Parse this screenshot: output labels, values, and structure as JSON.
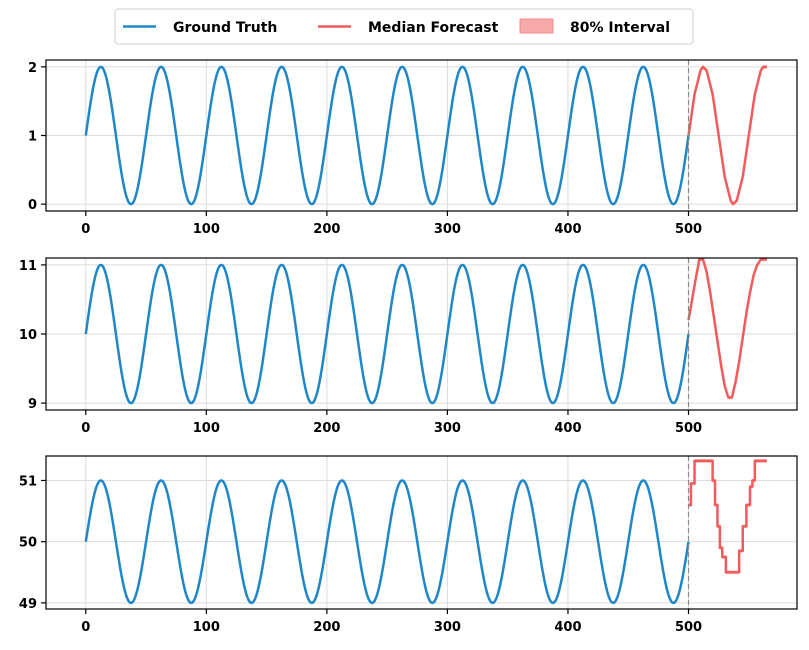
{
  "legend": {
    "placement": "top-center",
    "items": [
      {
        "label": "Ground Truth",
        "type": "line",
        "color": "#1f87c7"
      },
      {
        "label": "Median Forecast",
        "type": "line",
        "color": "#f25b5b"
      },
      {
        "label": "80% Interval",
        "type": "patch",
        "color": "#f7a8a8"
      }
    ]
  },
  "chart_data": [
    {
      "type": "line",
      "xlim": [
        -33,
        590
      ],
      "ylim": [
        -0.1,
        2.1
      ],
      "x_ticks": [
        0,
        100,
        200,
        300,
        400,
        500
      ],
      "y_ticks": [
        0,
        1,
        2
      ],
      "grid": true,
      "forecast_start": 500,
      "ground_truth": {
        "name": "Ground Truth",
        "x_start": 0,
        "x_end": 500,
        "period": 50,
        "baseline": 1,
        "amplitude": 1
      },
      "median_forecast": {
        "name": "Median Forecast",
        "x": [
          500,
          505,
          510,
          512,
          515,
          520,
          525,
          530,
          535,
          537,
          540,
          545,
          550,
          555,
          560,
          562,
          565
        ],
        "y": [
          1.0,
          1.6,
          1.95,
          2.0,
          1.95,
          1.6,
          1.0,
          0.4,
          0.05,
          0.0,
          0.05,
          0.4,
          1.0,
          1.6,
          1.95,
          2.0,
          2.0
        ]
      }
    },
    {
      "type": "line",
      "xlim": [
        -33,
        590
      ],
      "ylim": [
        8.9,
        11.1
      ],
      "x_ticks": [
        0,
        100,
        200,
        300,
        400,
        500
      ],
      "y_ticks": [
        9,
        10,
        11
      ],
      "grid": true,
      "forecast_start": 500,
      "ground_truth": {
        "name": "Ground Truth",
        "x_start": 0,
        "x_end": 500,
        "period": 50,
        "baseline": 10,
        "amplitude": 1
      },
      "median_forecast": {
        "name": "Median Forecast",
        "x": [
          500,
          503,
          506,
          509,
          512,
          515,
          518,
          521,
          524,
          527,
          530,
          533,
          536,
          539,
          542,
          545,
          548,
          551,
          554,
          557,
          560,
          563,
          565
        ],
        "y": [
          10.2,
          10.5,
          10.8,
          11.08,
          11.08,
          10.9,
          10.6,
          10.25,
          9.9,
          9.55,
          9.25,
          9.08,
          9.08,
          9.3,
          9.6,
          9.95,
          10.3,
          10.6,
          10.85,
          11.0,
          11.08,
          11.08,
          11.08
        ]
      }
    },
    {
      "type": "line",
      "xlim": [
        -33,
        590
      ],
      "ylim": [
        48.9,
        51.4
      ],
      "x_ticks": [
        0,
        100,
        200,
        300,
        400,
        500
      ],
      "y_ticks": [
        49,
        50,
        51
      ],
      "grid": true,
      "forecast_start": 500,
      "ground_truth": {
        "name": "Ground Truth",
        "x_start": 0,
        "x_end": 500,
        "period": 50,
        "baseline": 50,
        "amplitude": 1
      },
      "median_forecast": {
        "name": "Median Forecast",
        "step": true,
        "x": [
          500,
          502,
          505,
          508,
          512,
          515,
          520,
          522,
          524,
          526,
          528,
          531,
          534,
          538,
          542,
          545,
          548,
          551,
          553,
          555,
          558,
          565
        ],
        "y": [
          50.6,
          50.95,
          51.32,
          51.32,
          51.32,
          51.32,
          51.0,
          50.6,
          50.25,
          49.9,
          49.75,
          49.5,
          49.5,
          49.5,
          49.85,
          50.25,
          50.6,
          50.9,
          51.0,
          51.32,
          51.32,
          51.32
        ]
      }
    }
  ]
}
